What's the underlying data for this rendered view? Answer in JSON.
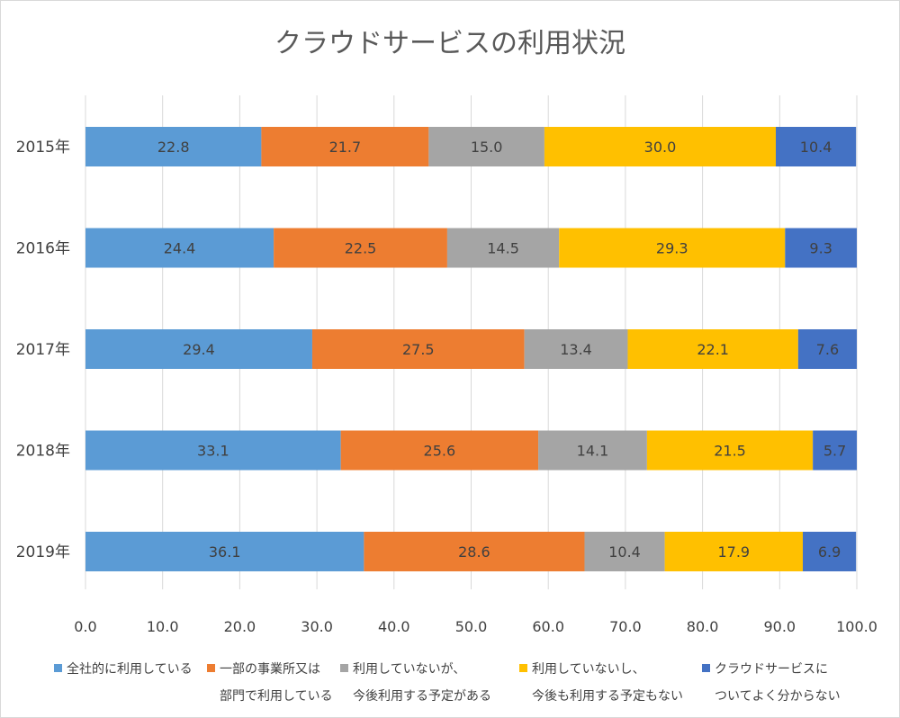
{
  "chart_data": {
    "type": "bar",
    "orientation": "horizontal",
    "stacked": true,
    "title": "クラウドサービスの利用状況",
    "categories": [
      "2015年",
      "2016年",
      "2017年",
      "2018年",
      "2019年"
    ],
    "series": [
      {
        "name_lines": [
          "全社的に利用している",
          ""
        ],
        "color": "#5B9BD5",
        "values": [
          22.8,
          24.4,
          29.4,
          33.1,
          36.1
        ]
      },
      {
        "name_lines": [
          "一部の事業所又は",
          "部門で利用している"
        ],
        "color": "#ED7D31",
        "values": [
          21.7,
          22.5,
          27.5,
          25.6,
          28.6
        ]
      },
      {
        "name_lines": [
          "利用していないが、",
          "今後利用する予定がある"
        ],
        "color": "#A5A5A5",
        "values": [
          15.0,
          14.5,
          13.4,
          14.1,
          10.4
        ]
      },
      {
        "name_lines": [
          "利用していないし、",
          "今後も利用する予定もない"
        ],
        "color": "#FFC000",
        "values": [
          30.0,
          29.3,
          22.1,
          21.5,
          17.9
        ]
      },
      {
        "name_lines": [
          "クラウドサービスに",
          "ついてよく分からない"
        ],
        "color": "#4472C4",
        "values": [
          10.4,
          9.3,
          7.6,
          5.7,
          6.9
        ]
      }
    ],
    "xlim": [
      0,
      100
    ],
    "xticks": [
      "0.0",
      "10.0",
      "20.0",
      "30.0",
      "40.0",
      "50.0",
      "60.0",
      "70.0",
      "80.0",
      "90.0",
      "100.0"
    ],
    "grid": true,
    "legend": "bottom"
  }
}
